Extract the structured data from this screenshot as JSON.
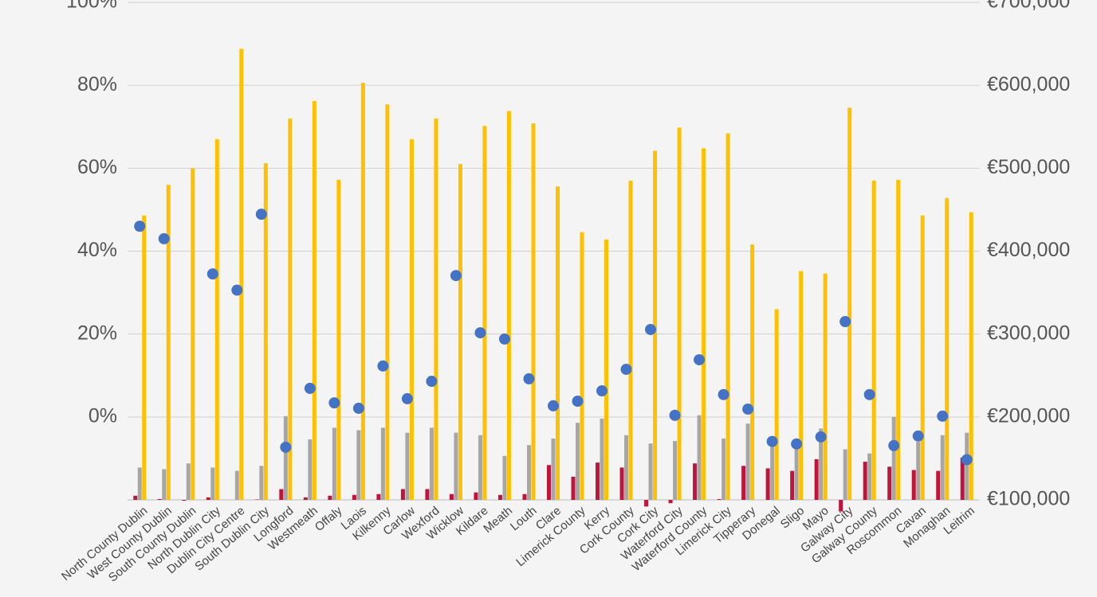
{
  "chart_data": {
    "type": "bar",
    "categories": [
      "North County Dublin",
      "West County Dublin",
      "South County Dublin",
      "North Dublin City",
      "Dublin City Centre",
      "South Dublin City",
      "Longford",
      "Westmeath",
      "Offaly",
      "Laois",
      "Kilkenny",
      "Carlow",
      "Wexford",
      "Wicklow",
      "Kildare",
      "Meath",
      "Louth",
      "Clare",
      "Limerick County",
      "Kerry",
      "Cork County",
      "Cork City",
      "Waterford City",
      "Waterford County",
      "Limerick City",
      "Tipperary",
      "Donegal",
      "Sligo",
      "Mayo",
      "Galway City",
      "Galway County",
      "Roscommon",
      "Cavan",
      "Monaghan",
      "Leitrim"
    ],
    "ylim": [
      -20,
      100
    ],
    "yticks": [
      {
        "value": 0,
        "label": "0%"
      },
      {
        "value": 20,
        "label": "20%"
      },
      {
        "value": 40,
        "label": "40%"
      },
      {
        "value": 60,
        "label": "60%"
      },
      {
        "value": 80,
        "label": "80%"
      },
      {
        "value": 100,
        "label": "100%"
      }
    ],
    "y2lim": [
      100000,
      700000
    ],
    "y2ticks": [
      {
        "value": 100000,
        "label": "€100,000"
      },
      {
        "value": 200000,
        "label": "€200,000"
      },
      {
        "value": 300000,
        "label": "€300,000"
      },
      {
        "value": 400000,
        "label": "€400,000"
      },
      {
        "value": 500000,
        "label": "€500,000"
      },
      {
        "value": 600000,
        "label": "€600,000"
      },
      {
        "value": 700000,
        "label": "€700,000"
      }
    ],
    "grid": true,
    "series": [
      {
        "type": "bar",
        "axis": "y2",
        "color": "#c0143c",
        "values": [
          105000,
          101000,
          99000,
          103000,
          100000,
          100500,
          113000,
          103000,
          105000,
          106000,
          107000,
          113000,
          113000,
          107000,
          109000,
          106000,
          107000,
          142000,
          128000,
          145000,
          139000,
          92000,
          96000,
          144000,
          101000,
          141000,
          138000,
          135000,
          149000,
          86000,
          146000,
          140000,
          136000,
          135000,
          151000
        ]
      },
      {
        "type": "bar",
        "axis": "y2",
        "color": "#a6a6a6",
        "values": [
          139000,
          137000,
          144000,
          139000,
          135000,
          141000,
          201000,
          173000,
          187000,
          184000,
          187000,
          181000,
          187000,
          181000,
          178000,
          153000,
          166000,
          174000,
          193000,
          198000,
          178000,
          168000,
          171000,
          202000,
          174000,
          192000,
          164000,
          161000,
          186000,
          161000,
          156000,
          200000,
          170000,
          178000,
          181000
        ]
      },
      {
        "type": "bar",
        "axis": "y2",
        "color": "#ffc000",
        "values": [
          443000,
          480000,
          500000,
          535000,
          644000,
          506000,
          560000,
          581000,
          486000,
          603000,
          577000,
          535000,
          560000,
          505000,
          551000,
          569000,
          554000,
          478000,
          423000,
          414000,
          485000,
          521000,
          549000,
          524000,
          542000,
          408000,
          330000,
          376000,
          373000,
          573000,
          485000,
          486000,
          443000,
          464000,
          447000
        ]
      },
      {
        "type": "scatter",
        "color": "#4472c4",
        "values": [
          46,
          43,
          null,
          34.5,
          30.6,
          48.9,
          -7.3,
          6.9,
          3.4,
          2.1,
          12.3,
          4.4,
          8.6,
          34.1,
          20.3,
          18.8,
          9.2,
          2.7,
          3.8,
          6.3,
          11.5,
          21.1,
          0.4,
          13.8,
          5.4,
          1.9,
          -5.9,
          -6.5,
          -4.8,
          23,
          5.4,
          -6.9,
          -4.6,
          0.2,
          -10.3
        ]
      }
    ]
  }
}
